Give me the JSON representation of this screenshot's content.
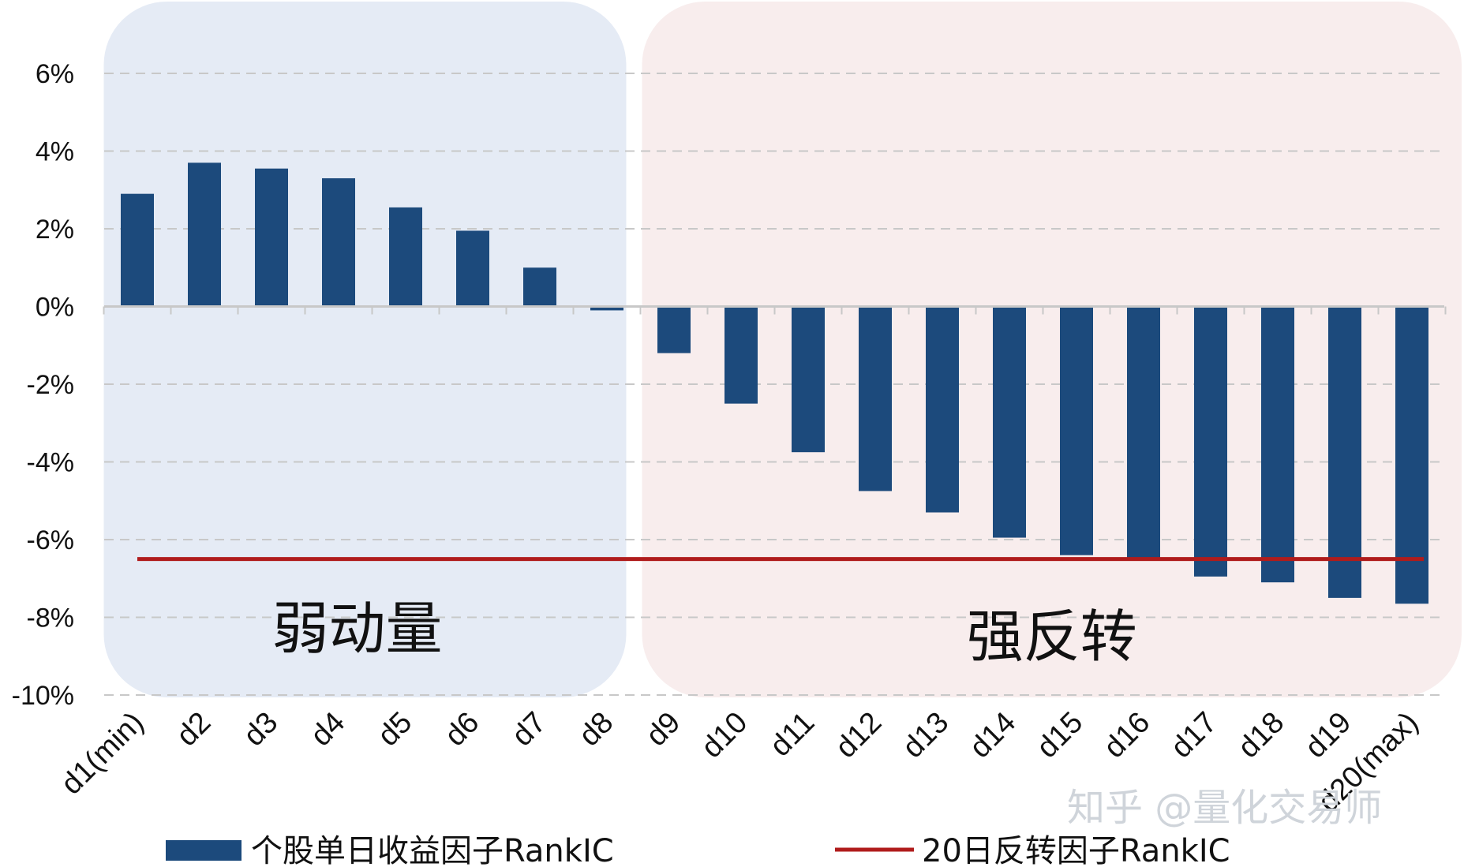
{
  "chart_data": {
    "type": "bar",
    "categories": [
      "d1(min)",
      "d2",
      "d3",
      "d4",
      "d5",
      "d6",
      "d7",
      "d8",
      "d9",
      "d10",
      "d11",
      "d12",
      "d13",
      "d14",
      "d15",
      "d16",
      "d17",
      "d18",
      "d19",
      "d20(max)"
    ],
    "series": [
      {
        "name": "个股单日收益因子RankIC",
        "type": "bar",
        "values": [
          2.9,
          3.7,
          3.55,
          3.3,
          2.55,
          1.95,
          1.0,
          -0.1,
          -1.2,
          -2.5,
          -3.75,
          -4.75,
          -5.3,
          -5.95,
          -6.4,
          -6.5,
          -6.95,
          -7.1,
          -7.5,
          -7.65
        ],
        "color": "#1c4a7c"
      },
      {
        "name": "20日反转因子RankIC",
        "type": "line",
        "value": -6.5,
        "color": "#b01c1c"
      }
    ],
    "ylim": [
      -10,
      6
    ],
    "yticks": [
      6,
      4,
      2,
      0,
      -2,
      -4,
      -6,
      -8,
      -10
    ],
    "ytick_labels": [
      "6%",
      "4%",
      "2%",
      "0%",
      "-2%",
      "-4%",
      "-6%",
      "-8%",
      "-10%"
    ],
    "grid": true,
    "legend": "bottom",
    "regions": [
      {
        "label": "弱动量",
        "from": "d1(min)",
        "to": "d8",
        "color": "#e5ebf5"
      },
      {
        "label": "强反转",
        "from": "d9",
        "to": "d20(max)",
        "color": "#f8eded"
      }
    ]
  },
  "watermark": "知乎 @量化交易师"
}
